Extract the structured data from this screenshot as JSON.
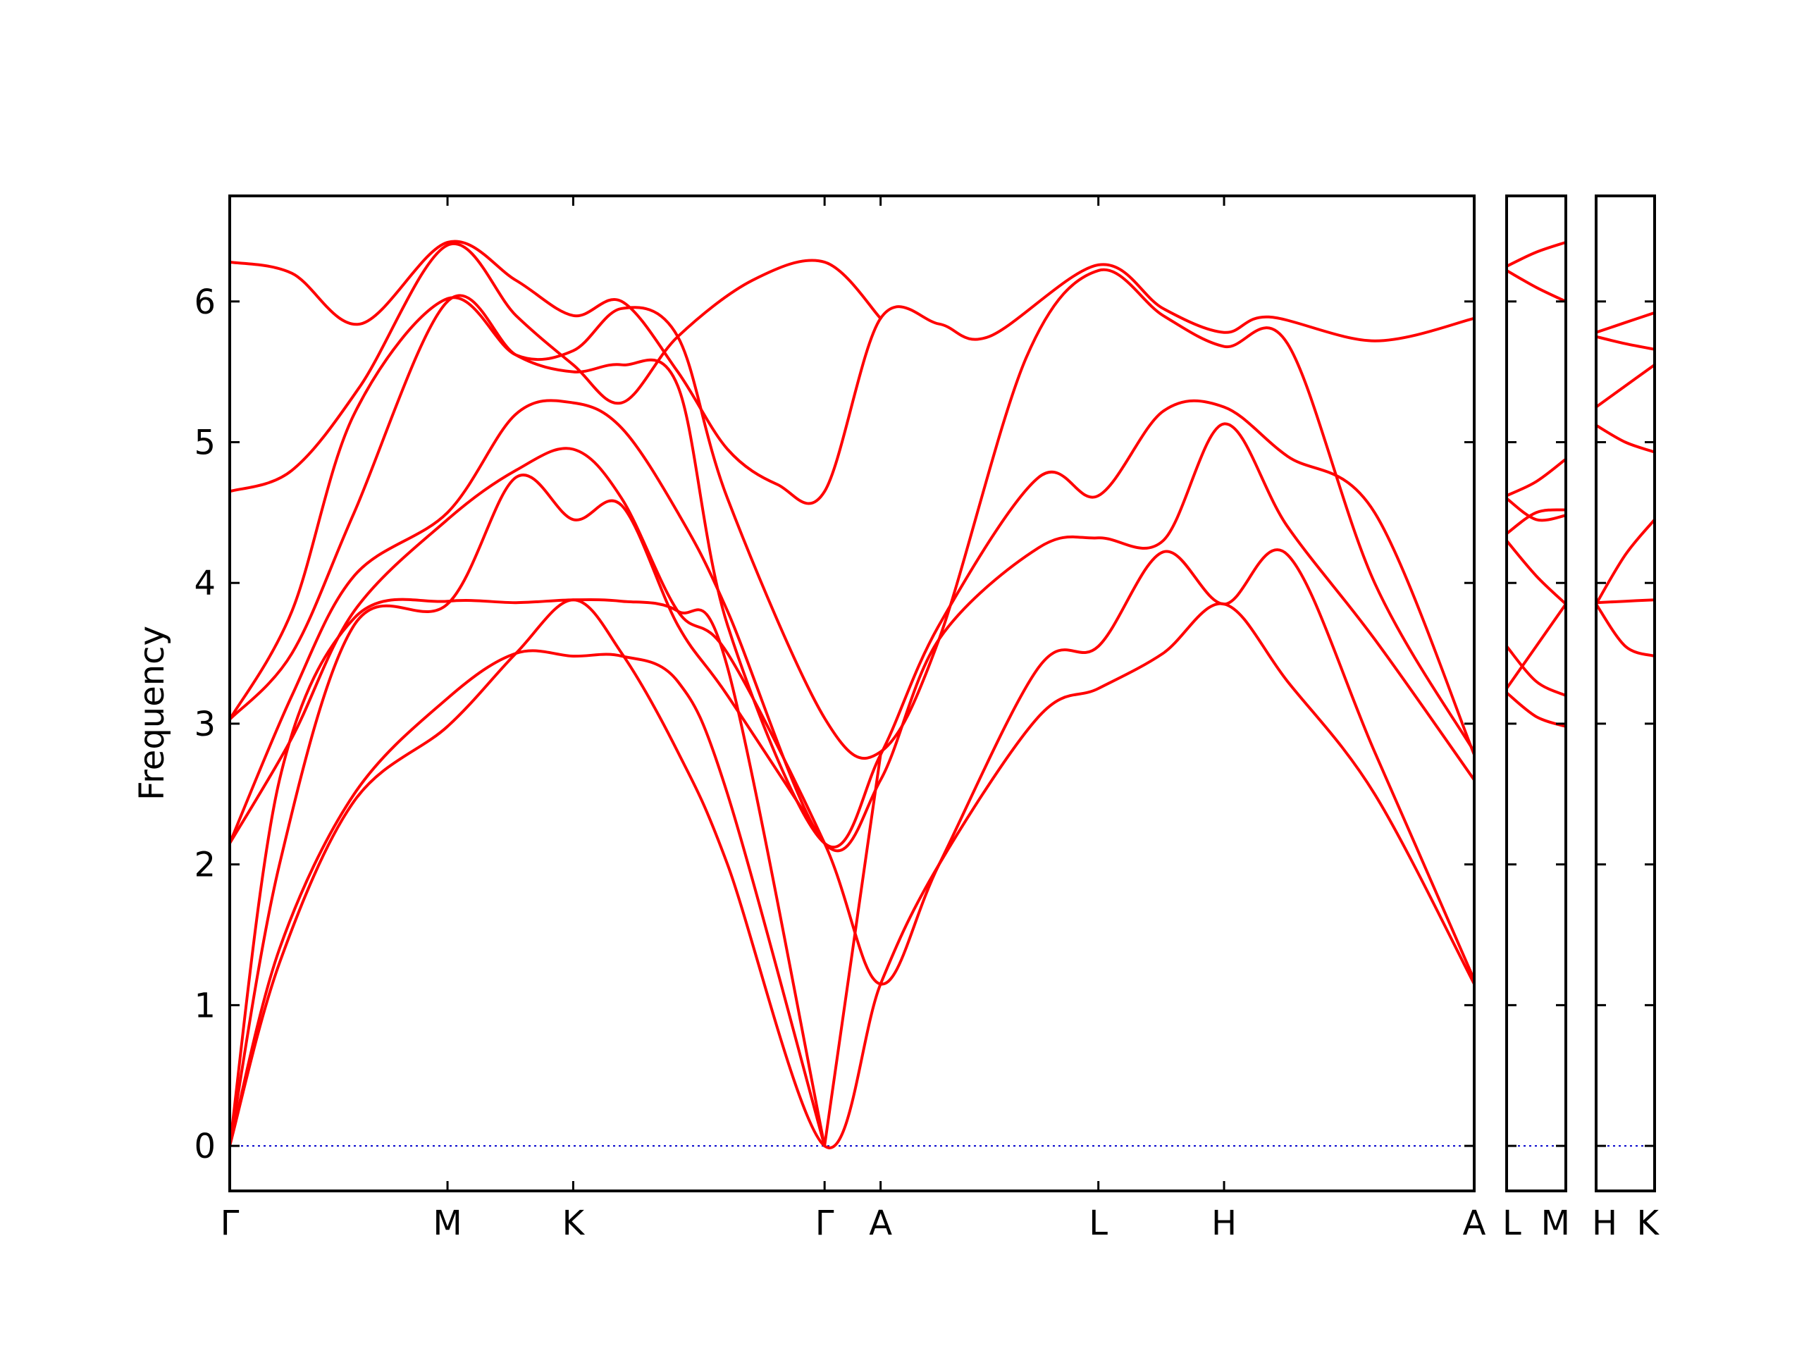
{
  "chart_data": {
    "type": "line",
    "ylabel": "Frequency",
    "ylim": [
      -0.32,
      6.75
    ],
    "yticks": [
      0,
      1,
      2,
      3,
      4,
      5,
      6
    ],
    "colors": {
      "bands": "#ff0000",
      "zero_line": "#0000cc",
      "frame": "#000000"
    },
    "panels": [
      {
        "name": "main",
        "xlim": [
          0,
          10
        ],
        "labels": [
          {
            "x": 0,
            "text": "Γ"
          },
          {
            "x": 1.75,
            "text": "M"
          },
          {
            "x": 2.76,
            "text": "K"
          },
          {
            "x": 4.78,
            "text": "Γ"
          },
          {
            "x": 5.23,
            "text": "A"
          },
          {
            "x": 6.98,
            "text": "L"
          },
          {
            "x": 7.99,
            "text": "H"
          },
          {
            "x": 10,
            "text": "A"
          }
        ],
        "bands": [
          [
            [
              0,
              6.28
            ],
            [
              0.5,
              6.2
            ],
            [
              1.05,
              5.84
            ],
            [
              1.75,
              6.42
            ],
            [
              2.3,
              6.15
            ],
            [
              2.76,
              5.9
            ],
            [
              3.15,
              6.0
            ],
            [
              3.6,
              5.5
            ],
            [
              4.0,
              4.95
            ],
            [
              4.4,
              4.7
            ],
            [
              4.78,
              4.65
            ],
            [
              5.23,
              5.88
            ],
            [
              5.7,
              5.84
            ],
            [
              6.1,
              5.75
            ],
            [
              6.98,
              6.26
            ],
            [
              7.5,
              5.95
            ],
            [
              7.99,
              5.78
            ],
            [
              8.35,
              5.89
            ],
            [
              9.2,
              5.72
            ],
            [
              10,
              5.88
            ]
          ],
          [
            [
              0,
              4.65
            ],
            [
              0.5,
              4.8
            ],
            [
              1.05,
              5.4
            ],
            [
              1.75,
              6.4
            ],
            [
              2.3,
              5.9
            ],
            [
              2.76,
              5.55
            ],
            [
              3.15,
              5.28
            ],
            [
              3.6,
              5.75
            ],
            [
              4.2,
              6.15
            ],
            [
              4.78,
              6.28
            ],
            [
              5.23,
              5.88
            ]
          ],
          [
            [
              0,
              3.03
            ],
            [
              0.5,
              3.8
            ],
            [
              1.0,
              5.2
            ],
            [
              1.75,
              6.02
            ],
            [
              2.3,
              5.62
            ],
            [
              2.76,
              5.65
            ],
            [
              3.15,
              5.95
            ],
            [
              3.6,
              5.75
            ],
            [
              4.0,
              4.6
            ],
            [
              4.78,
              3.04
            ],
            [
              5.23,
              2.8
            ],
            [
              5.7,
              3.6
            ],
            [
              6.4,
              5.6
            ],
            [
              6.98,
              6.22
            ],
            [
              7.5,
              5.9
            ],
            [
              7.99,
              5.68
            ],
            [
              8.5,
              5.7
            ],
            [
              9.2,
              4.0
            ],
            [
              10,
              2.8
            ]
          ],
          [
            [
              0,
              3.03
            ],
            [
              0.5,
              3.5
            ],
            [
              1.0,
              4.5
            ],
            [
              1.75,
              6.0
            ],
            [
              2.3,
              5.62
            ],
            [
              2.76,
              5.5
            ],
            [
              3.15,
              5.55
            ],
            [
              3.6,
              5.4
            ],
            [
              4.0,
              3.7
            ],
            [
              4.78,
              2.15
            ],
            [
              5.23,
              2.78
            ],
            [
              5.7,
              3.7
            ],
            [
              6.5,
              4.75
            ],
            [
              6.98,
              4.62
            ],
            [
              7.5,
              5.22
            ],
            [
              7.99,
              5.25
            ],
            [
              8.5,
              4.9
            ],
            [
              9.2,
              4.5
            ],
            [
              10,
              2.78
            ]
          ],
          [
            [
              0,
              2.15
            ],
            [
              0.5,
              3.2
            ],
            [
              1.0,
              4.05
            ],
            [
              1.75,
              4.5
            ],
            [
              2.3,
              5.2
            ],
            [
              2.76,
              5.28
            ],
            [
              3.15,
              5.1
            ],
            [
              3.6,
              4.5
            ],
            [
              4.0,
              3.8
            ],
            [
              4.78,
              2.15
            ],
            [
              5.23,
              2.6
            ],
            [
              5.7,
              3.6
            ],
            [
              6.5,
              4.25
            ],
            [
              6.98,
              4.32
            ],
            [
              7.5,
              4.3
            ],
            [
              7.99,
              5.13
            ],
            [
              8.5,
              4.4
            ],
            [
              9.2,
              3.6
            ],
            [
              10,
              2.6
            ]
          ],
          [
            [
              0,
              2.15
            ],
            [
              0.5,
              2.9
            ],
            [
              1.0,
              3.8
            ],
            [
              1.75,
              4.45
            ],
            [
              2.3,
              4.8
            ],
            [
              2.76,
              4.95
            ],
            [
              3.15,
              4.6
            ],
            [
              3.6,
              3.8
            ],
            [
              4.0,
              3.5
            ],
            [
              4.78,
              2.15
            ],
            [
              5.23,
              1.15
            ],
            [
              5.7,
              2.0
            ],
            [
              6.5,
              3.4
            ],
            [
              6.98,
              3.55
            ],
            [
              7.5,
              4.22
            ],
            [
              7.99,
              3.85
            ],
            [
              8.5,
              4.2
            ],
            [
              9.2,
              2.8
            ],
            [
              10,
              1.18
            ]
          ],
          [
            [
              0,
              0
            ],
            [
              0.4,
              2.0
            ],
            [
              1.0,
              3.7
            ],
            [
              1.75,
              3.85
            ],
            [
              2.3,
              4.75
            ],
            [
              2.76,
              4.45
            ],
            [
              3.15,
              4.55
            ],
            [
              3.6,
              3.7
            ],
            [
              4.0,
              3.2
            ],
            [
              4.78,
              2.15
            ]
          ],
          [
            [
              0,
              0
            ],
            [
              0.4,
              2.6
            ],
            [
              1.0,
              3.75
            ],
            [
              1.75,
              3.87
            ],
            [
              2.3,
              3.86
            ],
            [
              2.76,
              3.88
            ],
            [
              3.15,
              3.87
            ],
            [
              3.6,
              3.8
            ],
            [
              4.0,
              3.4
            ],
            [
              4.78,
              0
            ]
          ],
          [
            [
              0,
              0
            ],
            [
              0.4,
              1.4
            ],
            [
              1.0,
              2.5
            ],
            [
              1.75,
              3.18
            ],
            [
              2.3,
              3.5
            ],
            [
              2.76,
              3.48
            ],
            [
              3.15,
              3.48
            ],
            [
              3.6,
              3.3
            ],
            [
              4.0,
              2.5
            ],
            [
              4.78,
              0
            ]
          ],
          [
            [
              0,
              0
            ],
            [
              0.4,
              1.3
            ],
            [
              1.0,
              2.45
            ],
            [
              1.75,
              2.98
            ],
            [
              2.3,
              3.5
            ],
            [
              2.76,
              3.88
            ],
            [
              3.15,
              3.5
            ],
            [
              3.6,
              2.8
            ],
            [
              4.0,
              2.0
            ],
            [
              4.78,
              0
            ],
            [
              5.23,
              1.15
            ],
            [
              5.7,
              2.0
            ],
            [
              6.5,
              3.05
            ],
            [
              6.98,
              3.25
            ],
            [
              7.5,
              3.5
            ],
            [
              7.99,
              3.85
            ],
            [
              8.5,
              3.3
            ],
            [
              9.2,
              2.5
            ],
            [
              10,
              1.15
            ]
          ],
          [
            [
              4.78,
              0
            ],
            [
              5.23,
              2.78
            ]
          ]
        ]
      },
      {
        "name": "L-M",
        "xlim": [
          0,
          1
        ],
        "labels": [
          {
            "x": 0,
            "text": "L"
          },
          {
            "x": 1,
            "text": "M"
          }
        ],
        "bands": [
          [
            [
              0,
              6.25
            ],
            [
              0.5,
              6.35
            ],
            [
              1,
              6.42
            ]
          ],
          [
            [
              0,
              6.22
            ],
            [
              0.5,
              6.1
            ],
            [
              1,
              6.0
            ]
          ],
          [
            [
              0,
              4.62
            ],
            [
              0.5,
              4.72
            ],
            [
              1,
              4.88
            ]
          ],
          [
            [
              0,
              4.6
            ],
            [
              0.5,
              4.45
            ],
            [
              1,
              4.48
            ]
          ],
          [
            [
              0,
              4.35
            ],
            [
              0.5,
              4.5
            ],
            [
              1,
              4.52
            ]
          ],
          [
            [
              0,
              4.3
            ],
            [
              0.5,
              4.05
            ],
            [
              1,
              3.85
            ]
          ],
          [
            [
              0,
              3.55
            ],
            [
              0.5,
              3.3
            ],
            [
              1,
              3.2
            ]
          ],
          [
            [
              0,
              3.25
            ],
            [
              0.5,
              3.55
            ],
            [
              1,
              3.85
            ]
          ],
          [
            [
              0,
              3.22
            ],
            [
              0.5,
              3.05
            ],
            [
              1,
              2.98
            ]
          ]
        ]
      },
      {
        "name": "H-K",
        "xlim": [
          0,
          1
        ],
        "labels": [
          {
            "x": 0,
            "text": "H"
          },
          {
            "x": 1,
            "text": "K"
          }
        ],
        "bands": [
          [
            [
              0,
              5.78
            ],
            [
              0.5,
              5.85
            ],
            [
              1,
              5.92
            ]
          ],
          [
            [
              0,
              5.75
            ],
            [
              0.5,
              5.7
            ],
            [
              1,
              5.66
            ]
          ],
          [
            [
              0,
              5.25
            ],
            [
              0.5,
              5.4
            ],
            [
              1,
              5.55
            ]
          ],
          [
            [
              0,
              5.12
            ],
            [
              0.5,
              5.0
            ],
            [
              1,
              4.93
            ]
          ],
          [
            [
              0,
              3.85
            ],
            [
              0.5,
              4.2
            ],
            [
              1,
              4.45
            ]
          ],
          [
            [
              0,
              3.86
            ],
            [
              0.5,
              3.87
            ],
            [
              1,
              3.88
            ]
          ],
          [
            [
              0,
              3.85
            ],
            [
              0.5,
              3.55
            ],
            [
              1,
              3.48
            ]
          ]
        ]
      }
    ]
  }
}
